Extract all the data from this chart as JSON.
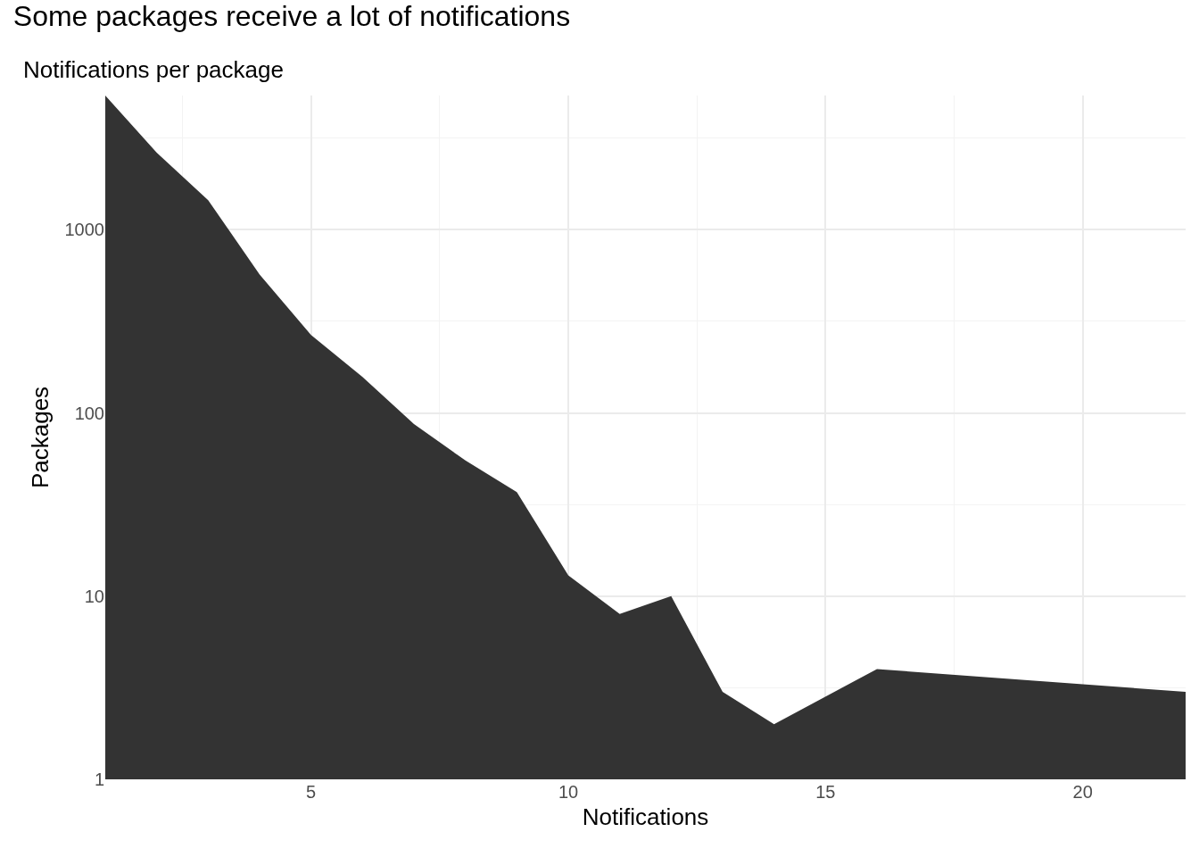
{
  "chart_data": {
    "type": "area",
    "title": "Some packages receive a lot of notifications",
    "subtitle": "Notifications per package",
    "xlabel": "Notifications",
    "ylabel": "Packages",
    "x": [
      1,
      2,
      3,
      4,
      5,
      6,
      7,
      8,
      9,
      10,
      11,
      12,
      13,
      14,
      16,
      22
    ],
    "series": [
      {
        "color": "#333333",
        "values": [
          5400,
          2630,
          1450,
          570,
          266,
          157,
          87,
          55,
          37,
          13,
          8,
          10,
          3,
          2,
          4,
          3
        ]
      }
    ],
    "xlim": [
      1,
      22
    ],
    "xticks": [
      5,
      10,
      15,
      20
    ],
    "ylim": [
      1,
      5400
    ],
    "yticks": [
      1,
      10,
      100,
      1000
    ],
    "log": "y",
    "grid": true
  }
}
